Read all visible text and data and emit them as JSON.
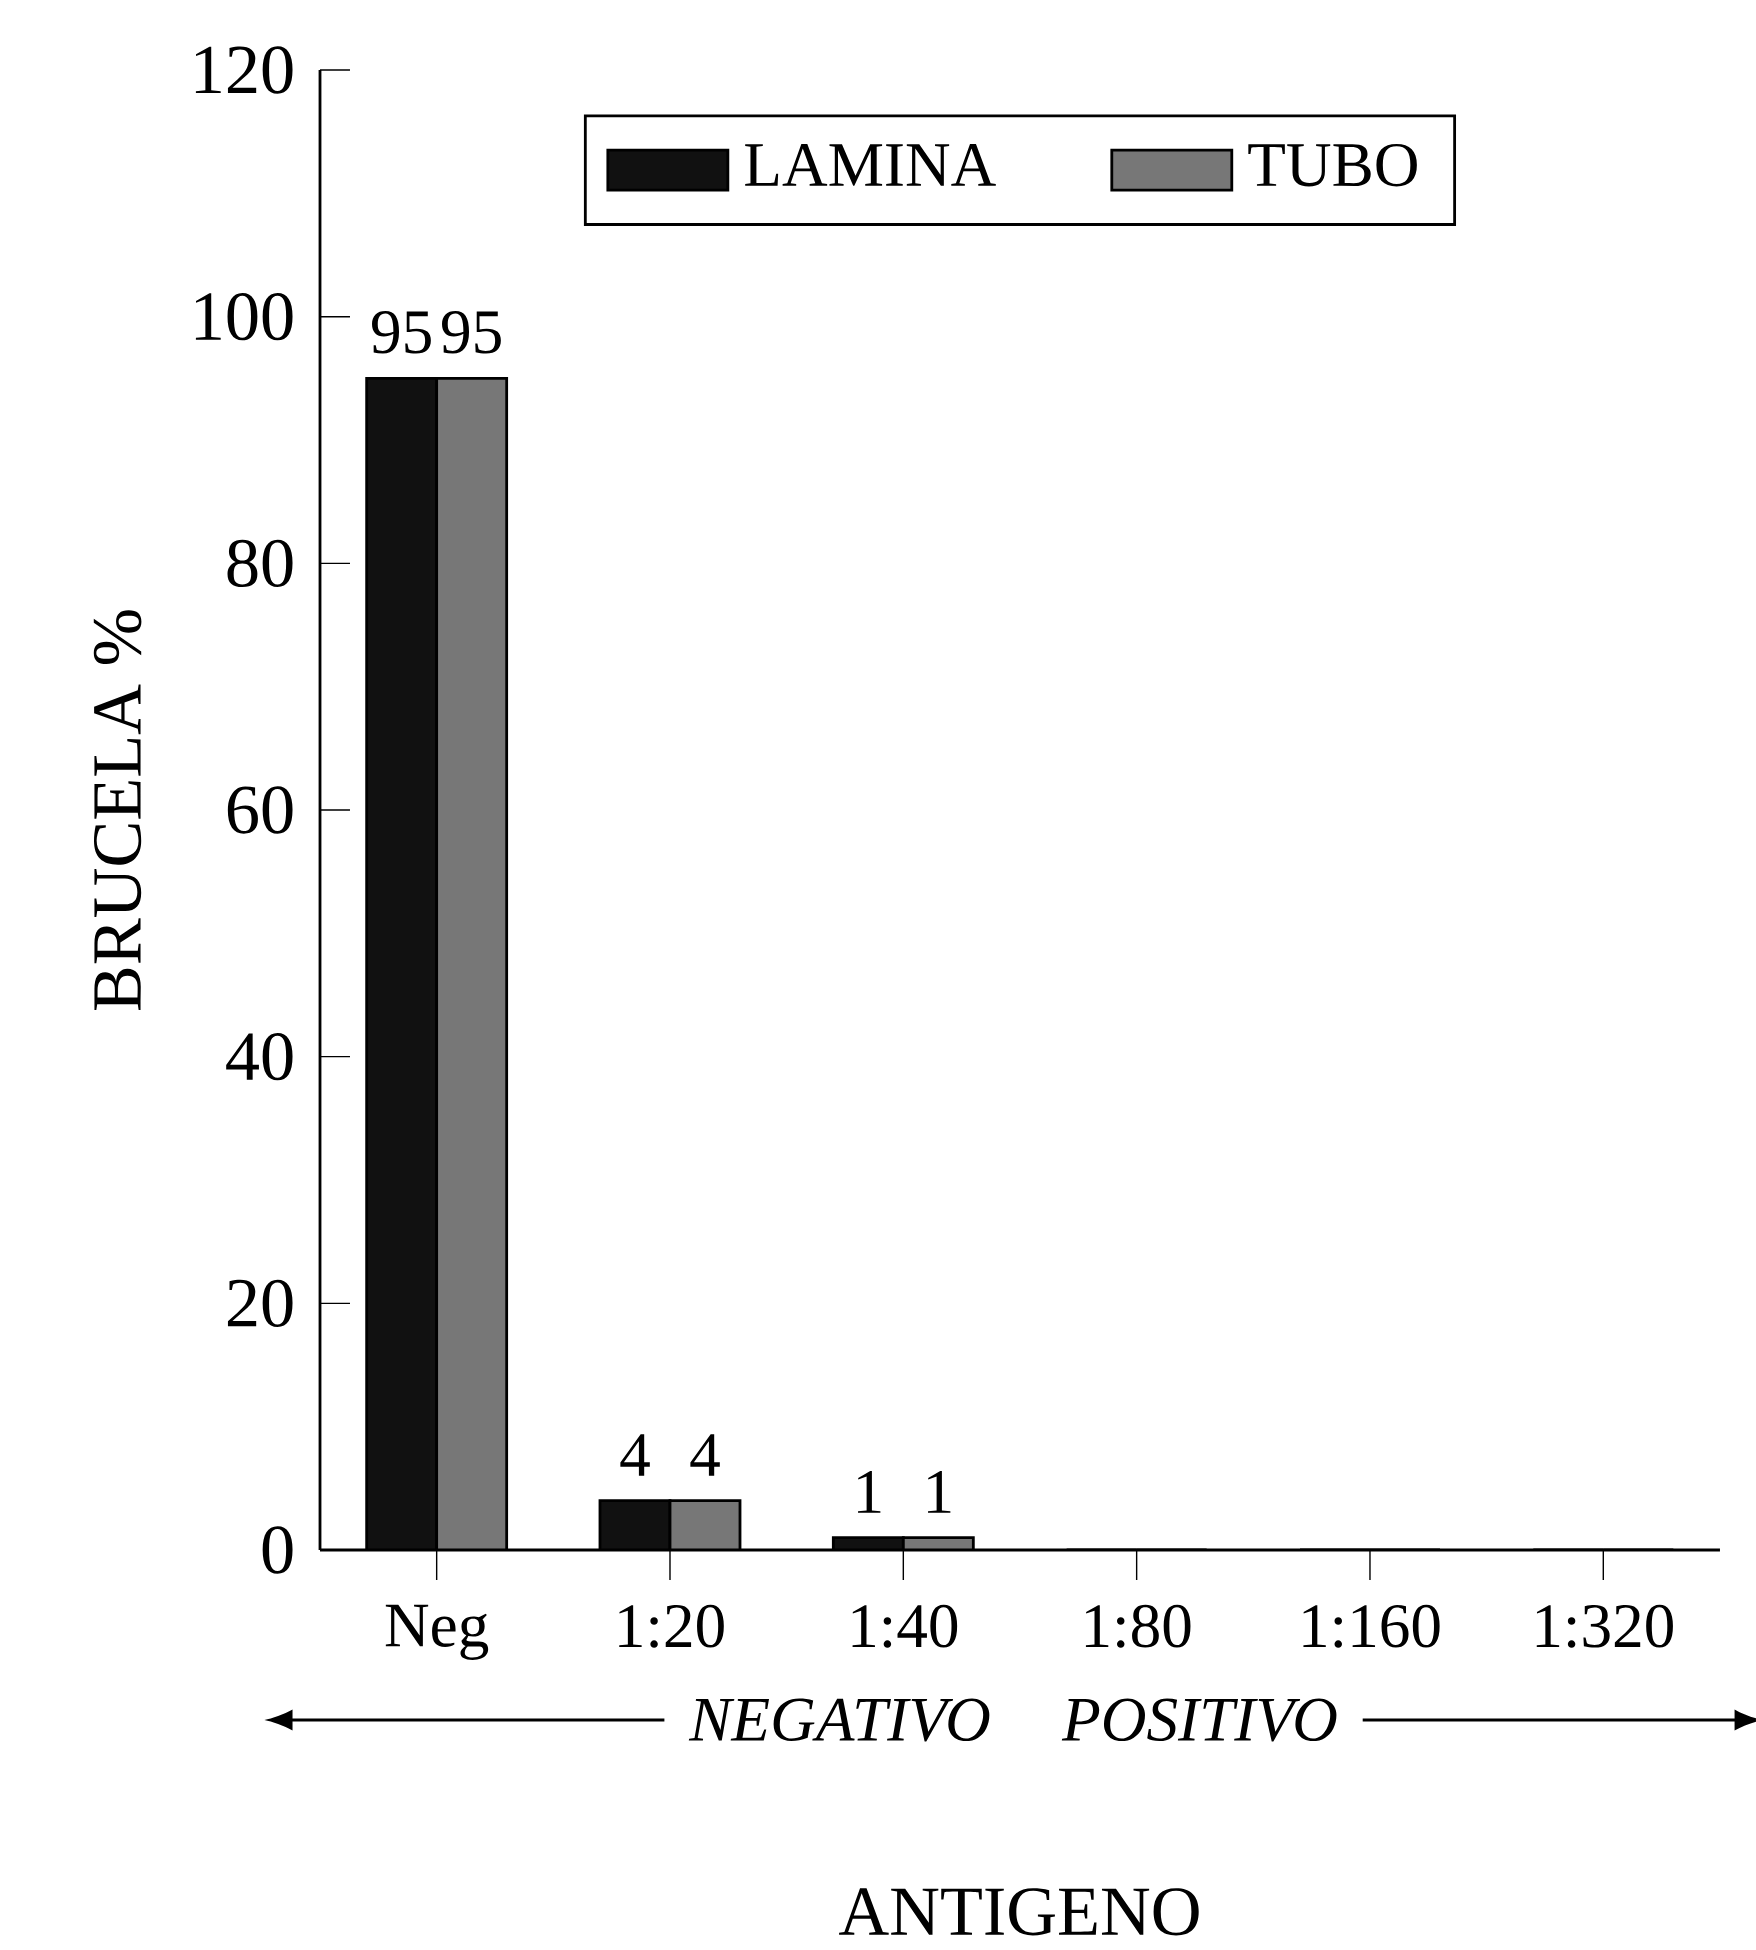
{
  "chart_data": {
    "type": "bar",
    "ylabel": "BRUCELA %",
    "xlabel": "ANTIGENO",
    "categories": [
      "Neg",
      "1:20",
      "1:40",
      "1:80",
      "1:160",
      "1:320"
    ],
    "series": [
      {
        "name": "LAMINA",
        "color": "#111111",
        "values": [
          95,
          4,
          1,
          0,
          0,
          0
        ],
        "value_labels": [
          "95",
          "4",
          "1",
          null,
          null,
          null
        ]
      },
      {
        "name": "TUBO",
        "color": "#777777",
        "values": [
          95,
          4,
          1,
          0,
          0,
          0
        ],
        "value_labels": [
          "95",
          "4",
          "1",
          null,
          null,
          null
        ]
      }
    ],
    "ylim": [
      0,
      120
    ],
    "yticks": [
      0,
      20,
      40,
      60,
      80,
      100,
      120
    ],
    "legend": "top",
    "grid": false,
    "annotations": [
      "NEGATIVO",
      "POSITIVO"
    ]
  }
}
